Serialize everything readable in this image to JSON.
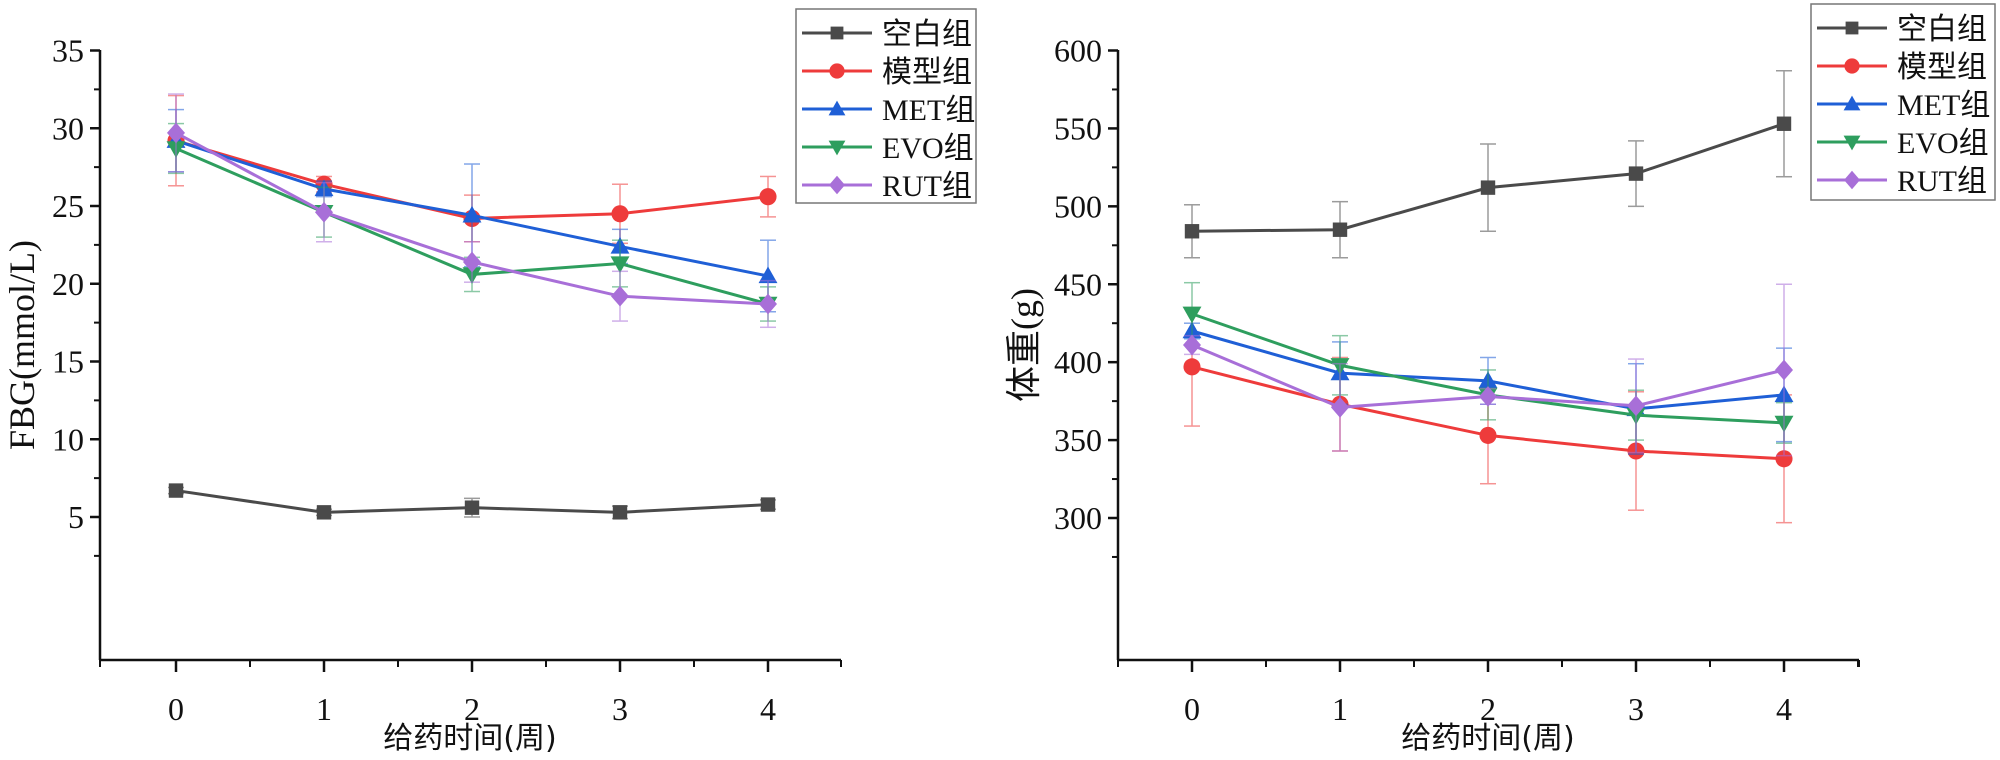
{
  "chart_data": [
    {
      "type": "line",
      "title": "",
      "xlabel": "给药时间(周)",
      "ylabel": "FBG(mmol/L)",
      "x": [
        0,
        1,
        2,
        3,
        4
      ],
      "x_tick_labels": [
        "0",
        "1",
        "2",
        "3",
        "4"
      ],
      "xlim": [
        -0.5,
        4.5
      ],
      "ylim": [
        2.5,
        35
      ],
      "y_ticks": [
        5,
        10,
        15,
        20,
        25,
        30,
        35
      ],
      "y_tick_labels": [
        "5",
        "10",
        "15",
        "20",
        "25",
        "30",
        "35"
      ],
      "grid": false,
      "legend_position": "top-right",
      "series": [
        {
          "name": "空白组",
          "color": "#4a4a4a",
          "marker": "square",
          "values": [
            6.7,
            5.3,
            5.6,
            5.3,
            5.8
          ],
          "errors": [
            0.2,
            0.2,
            0.6,
            0.4,
            0.3
          ]
        },
        {
          "name": "模型组",
          "color": "#ee3b3b",
          "marker": "circle",
          "values": [
            29.2,
            26.4,
            24.2,
            24.5,
            25.6
          ],
          "errors": [
            2.9,
            0.5,
            1.5,
            1.9,
            1.3
          ]
        },
        {
          "name": "MET组",
          "color": "#1f5fd6",
          "marker": "triangle-up",
          "values": [
            29.2,
            26.1,
            24.4,
            22.4,
            20.5
          ],
          "errors": [
            2.0,
            0.5,
            3.3,
            1.1,
            2.3
          ]
        },
        {
          "name": "EVO组",
          "color": "#2e9e5e",
          "marker": "triangle-down",
          "values": [
            28.7,
            24.6,
            20.6,
            21.3,
            18.7
          ],
          "errors": [
            1.6,
            1.6,
            1.1,
            1.5,
            1.1
          ]
        },
        {
          "name": "RUT组",
          "color": "#a86fd8",
          "marker": "diamond",
          "values": [
            29.7,
            24.6,
            21.4,
            19.2,
            18.7
          ],
          "errors": [
            2.5,
            1.9,
            1.3,
            1.6,
            1.5
          ]
        }
      ]
    },
    {
      "type": "line",
      "title": "",
      "xlabel": "给药时间(周)",
      "ylabel": "体重(g)",
      "x": [
        0,
        1,
        2,
        3,
        4
      ],
      "x_tick_labels": [
        "0",
        "1",
        "2",
        "3",
        "4"
      ],
      "xlim": [
        -0.5,
        4.5
      ],
      "ylim": [
        275,
        600
      ],
      "y_ticks": [
        300,
        350,
        400,
        450,
        500,
        550,
        600
      ],
      "y_tick_labels": [
        "300",
        "350",
        "400",
        "450",
        "500",
        "550",
        "600"
      ],
      "grid": false,
      "legend_position": "top-right",
      "series": [
        {
          "name": "空白组",
          "color": "#4a4a4a",
          "marker": "square",
          "values": [
            484,
            485,
            512,
            521,
            553
          ],
          "errors": [
            17,
            18,
            28,
            21,
            34
          ]
        },
        {
          "name": "模型组",
          "color": "#ee3b3b",
          "marker": "circle",
          "values": [
            397,
            373,
            353,
            343,
            338
          ],
          "errors": [
            38,
            30,
            31,
            38,
            41
          ]
        },
        {
          "name": "MET组",
          "color": "#1f5fd6",
          "marker": "triangle-up",
          "values": [
            420,
            393,
            388,
            370,
            379
          ],
          "errors": [
            5,
            20,
            15,
            29,
            30
          ]
        },
        {
          "name": "EVO组",
          "color": "#2e9e5e",
          "marker": "triangle-down",
          "values": [
            431,
            398,
            379,
            366,
            361
          ],
          "errors": [
            20,
            19,
            16,
            16,
            13
          ]
        },
        {
          "name": "RUT组",
          "color": "#a86fd8",
          "marker": "diamond",
          "values": [
            411,
            371,
            378,
            372,
            395
          ],
          "errors": [
            6,
            28,
            5,
            30,
            55
          ]
        }
      ]
    }
  ]
}
